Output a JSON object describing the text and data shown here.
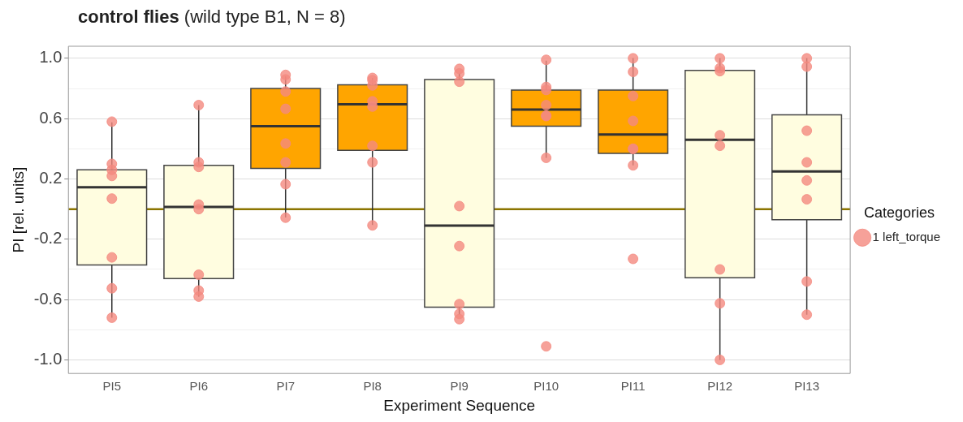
{
  "chart_data": {
    "type": "box",
    "title": "control flies",
    "subtitle": "(wild type B1, N = 8)",
    "xlabel": "Experiment Sequence",
    "ylabel": "PI [rel. units]",
    "legend_title": "Categories",
    "legend": "right",
    "grid": "y",
    "categories": [
      "PI5",
      "PI6",
      "PI7",
      "PI8",
      "PI9",
      "PI10",
      "PI11",
      "PI12",
      "PI13"
    ],
    "colors": [
      "#fffde0",
      "#fffde0",
      "#ffa500",
      "#ffa500",
      "#fffde0",
      "#ffa500",
      "#ffa500",
      "#fffde0",
      "#fffde0"
    ],
    "boxes": [
      {
        "low": -0.72,
        "q1": -0.37,
        "median": 0.145,
        "q3": 0.26,
        "high": 0.575
      },
      {
        "low": -0.58,
        "q1": -0.46,
        "median": 0.015,
        "q3": 0.29,
        "high": 0.69
      },
      {
        "low": -0.055,
        "q1": 0.27,
        "median": 0.55,
        "q3": 0.8,
        "high": 0.88
      },
      {
        "low": -0.105,
        "q1": 0.39,
        "median": 0.695,
        "q3": 0.825,
        "high": 0.87
      },
      {
        "low": -0.7,
        "q1": -0.65,
        "median": -0.11,
        "q3": 0.86,
        "high": 0.9
      },
      {
        "low": 0.34,
        "q1": 0.55,
        "median": 0.66,
        "q3": 0.79,
        "high": 0.985
      },
      {
        "low": 0.29,
        "q1": 0.37,
        "median": 0.495,
        "q3": 0.79,
        "high": 1.0
      },
      {
        "low": -1.0,
        "q1": -0.455,
        "median": 0.46,
        "q3": 0.92,
        "high": 1.0
      },
      {
        "low": -0.7,
        "q1": -0.07,
        "median": 0.25,
        "q3": 0.625,
        "high": 1.0
      }
    ],
    "series": [
      {
        "name": "1 left_torque",
        "type": "scatter",
        "color": "#f4897f",
        "marker": "circle",
        "x": [
          "PI5",
          "PI5",
          "PI5",
          "PI5",
          "PI5",
          "PI5",
          "PI5",
          "PI5",
          "PI6",
          "PI6",
          "PI6",
          "PI6",
          "PI6",
          "PI6",
          "PI6",
          "PI6",
          "PI7",
          "PI7",
          "PI7",
          "PI7",
          "PI7",
          "PI7",
          "PI7",
          "PI7",
          "PI8",
          "PI8",
          "PI8",
          "PI8",
          "PI8",
          "PI8",
          "PI8",
          "PI8",
          "PI9",
          "PI9",
          "PI9",
          "PI9",
          "PI9",
          "PI9",
          "PI9",
          "PI9",
          "PI10",
          "PI10",
          "PI10",
          "PI10",
          "PI10",
          "PI10",
          "PI10",
          "PI10",
          "PI11",
          "PI11",
          "PI11",
          "PI11",
          "PI11",
          "PI11",
          "PI11",
          "PI11",
          "PI12",
          "PI12",
          "PI12",
          "PI12",
          "PI12",
          "PI12",
          "PI12",
          "PI12",
          "PI13",
          "PI13",
          "PI13",
          "PI13",
          "PI13",
          "PI13",
          "PI13",
          "PI13"
        ],
        "values": [
          0.58,
          0.3,
          0.26,
          0.22,
          0.07,
          -0.32,
          -0.525,
          -0.72,
          0.69,
          0.31,
          0.28,
          0.03,
          0.0,
          -0.435,
          -0.54,
          -0.58,
          0.89,
          0.86,
          0.78,
          0.665,
          0.435,
          0.31,
          0.165,
          -0.057,
          0.87,
          0.855,
          0.82,
          0.715,
          0.68,
          0.42,
          0.31,
          -0.108,
          0.93,
          0.9,
          0.845,
          0.02,
          -0.245,
          -0.63,
          -0.695,
          -0.73,
          0.99,
          0.81,
          0.79,
          0.69,
          0.62,
          0.617,
          0.34,
          -0.91,
          1.0,
          0.91,
          0.75,
          0.585,
          0.4,
          0.4,
          0.29,
          -0.33,
          1.0,
          0.935,
          0.915,
          0.49,
          0.42,
          -0.4,
          -0.625,
          -1.0,
          1.0,
          0.945,
          0.52,
          0.31,
          0.19,
          0.065,
          -0.48,
          -0.7
        ]
      }
    ],
    "ref_lines": [
      {
        "axis": "y",
        "value": 0,
        "color": "#8b7500"
      }
    ],
    "ylim": [
      -1.09,
      1.08
    ],
    "yticks": [
      {
        "value": -1,
        "label": "-1.0"
      },
      {
        "value": -0.8,
        "label": null
      },
      {
        "value": -0.6,
        "label": "-0.6"
      },
      {
        "value": -0.4,
        "label": null
      },
      {
        "value": -0.2,
        "label": "-0.2"
      },
      {
        "value": 0,
        "label": null
      },
      {
        "value": 0.2,
        "label": "0.2"
      },
      {
        "value": 0.4,
        "label": null
      },
      {
        "value": 0.6,
        "label": "0.6"
      },
      {
        "value": 0.8,
        "label": null
      },
      {
        "value": 1,
        "label": "1.0"
      }
    ]
  }
}
